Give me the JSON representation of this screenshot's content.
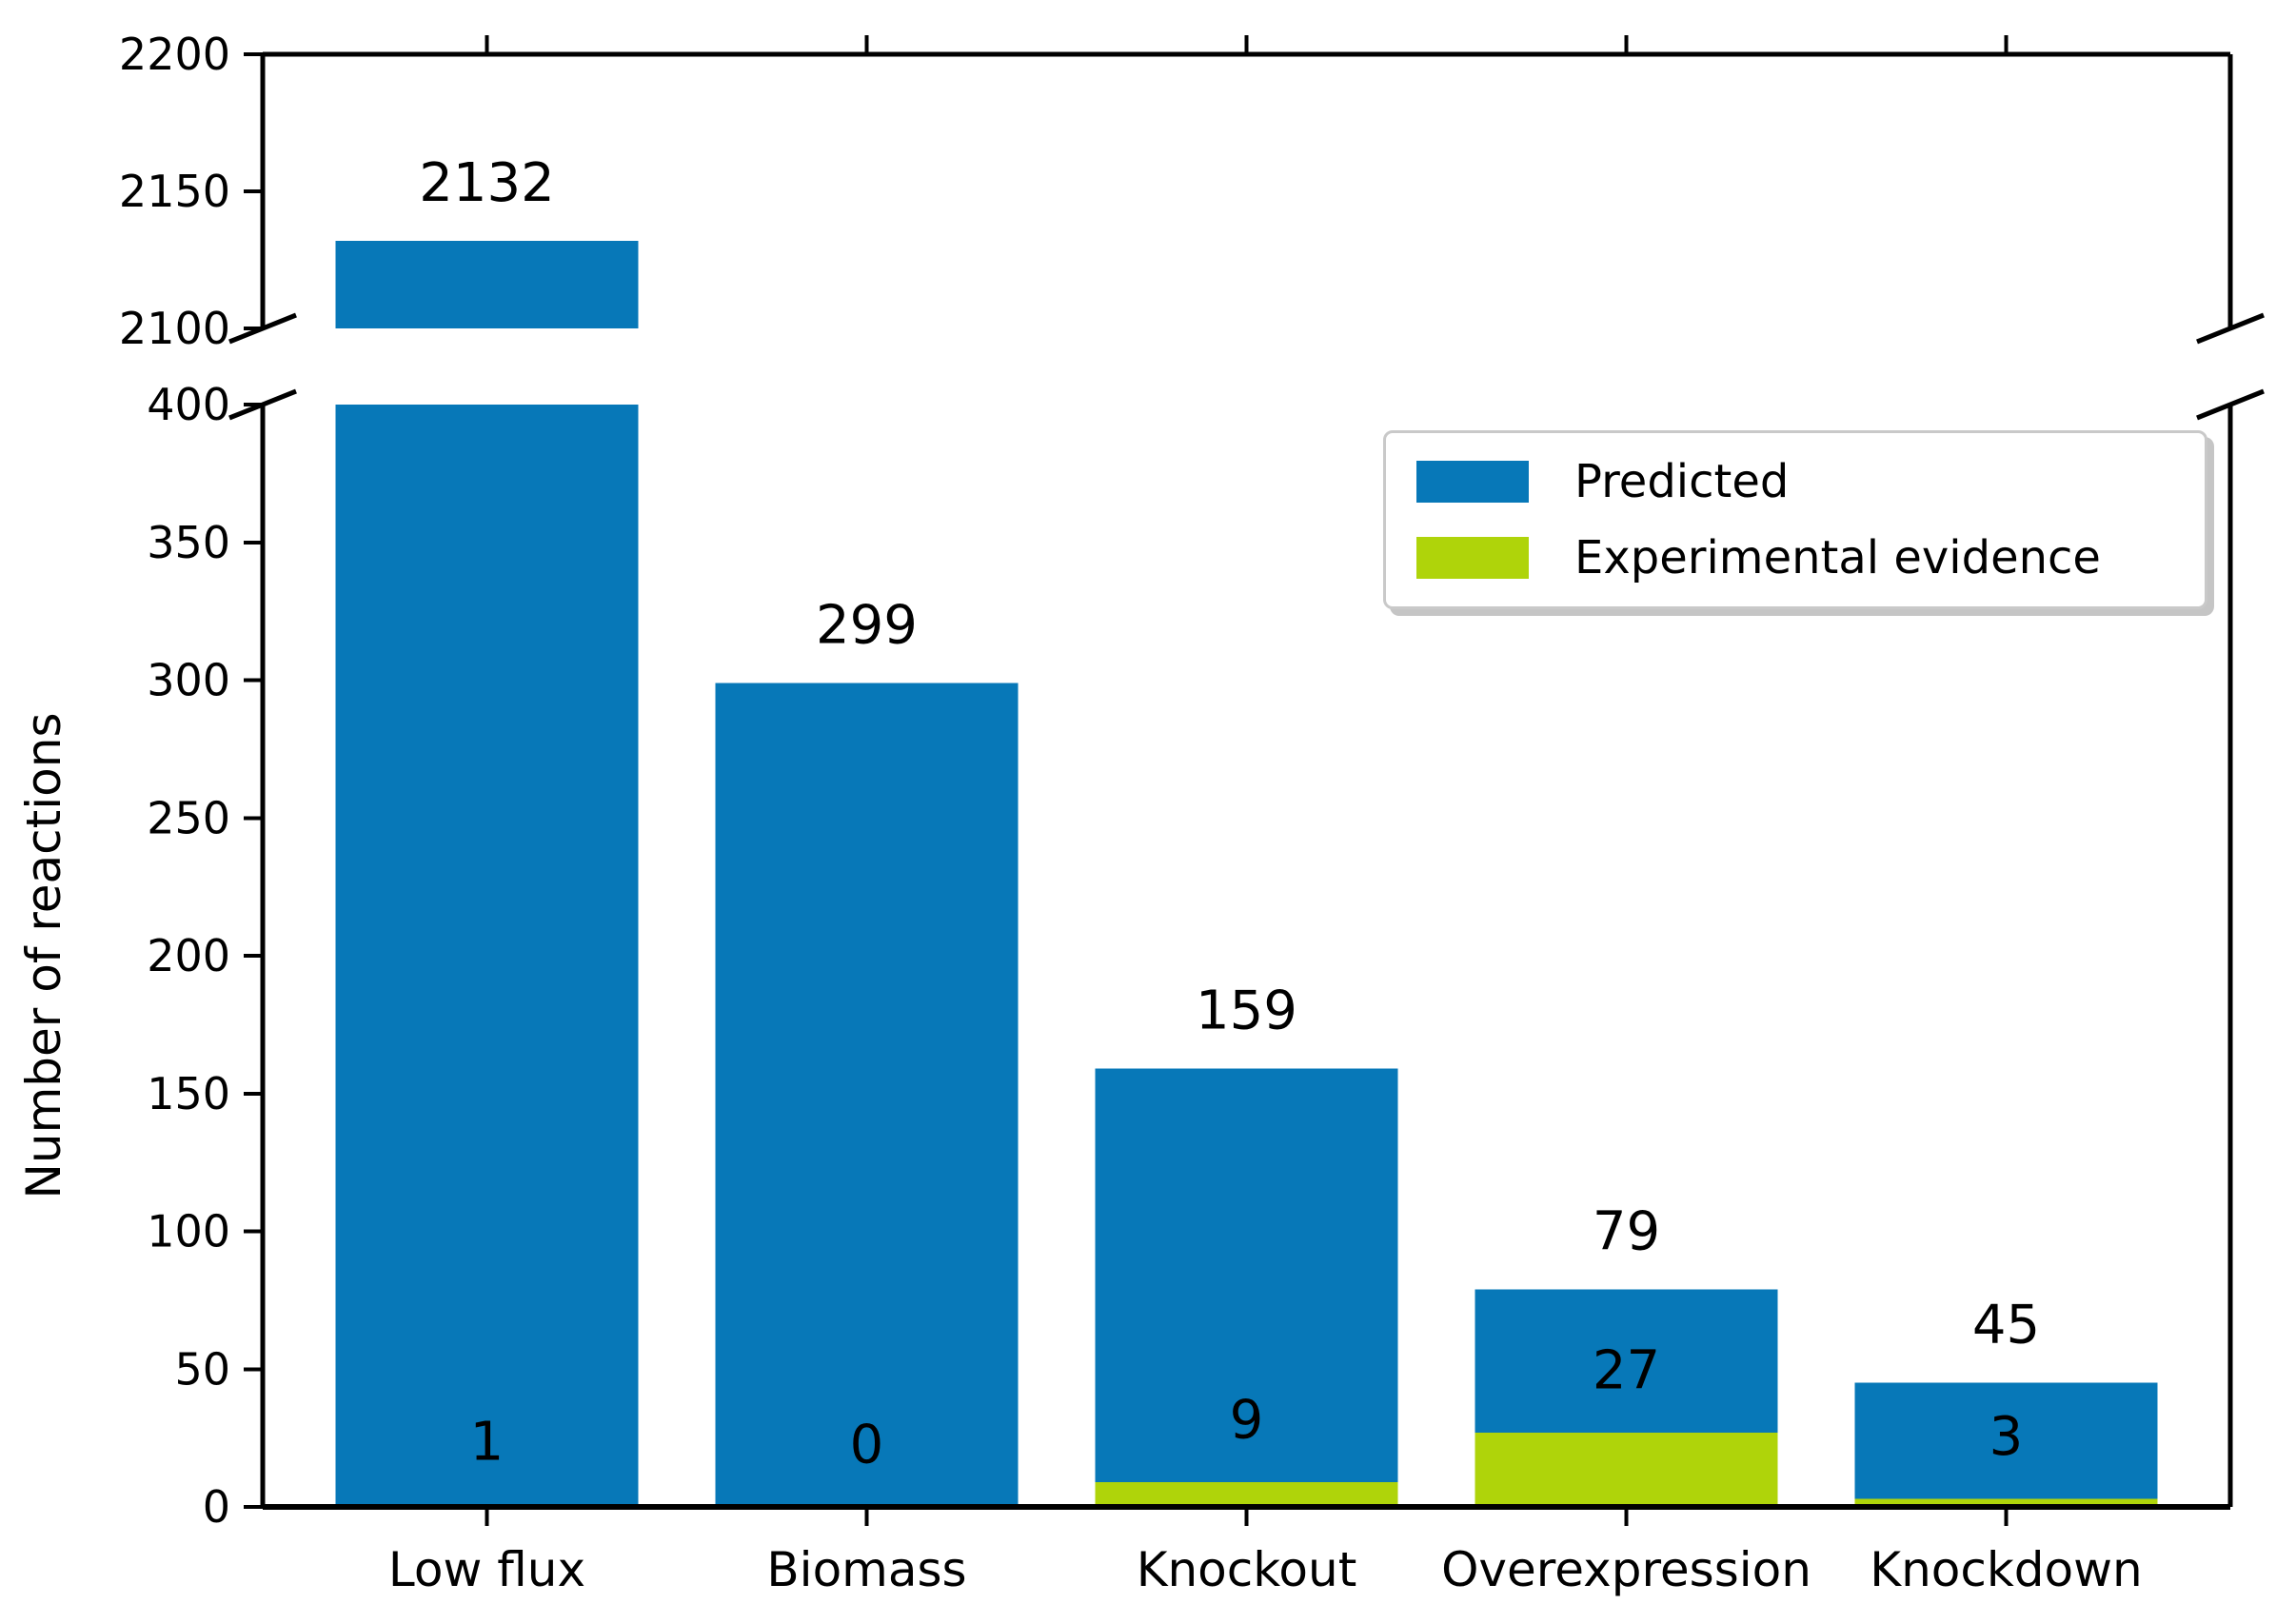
{
  "chart_data": {
    "type": "bar",
    "title": "",
    "xlabel": "",
    "ylabel": "Number of reactions",
    "categories": [
      "Low flux",
      "Biomass",
      "Knockout",
      "Overexpression",
      "Knockdown"
    ],
    "series": [
      {
        "name": "Predicted",
        "color": "#0778b8",
        "values": [
          2132,
          299,
          159,
          79,
          45
        ]
      },
      {
        "name": "Experimental evidence",
        "color": "#afd40a",
        "values": [
          1,
          0,
          9,
          27,
          3
        ]
      }
    ],
    "bar_total_labels": [
      "2132",
      "299",
      "159",
      "79",
      "45"
    ],
    "bar_inner_labels": [
      "1",
      "0",
      "9",
      "27",
      "3"
    ],
    "broken_axis": {
      "lower_panel": {
        "ylim": [
          0,
          400
        ],
        "ticks": [
          0,
          50,
          100,
          150,
          200,
          250,
          300,
          350,
          400
        ]
      },
      "upper_panel": {
        "ylim": [
          2100,
          2200
        ],
        "ticks": [
          2100,
          2150,
          2200
        ]
      }
    },
    "legend": {
      "position": "upper right",
      "entries": [
        "Predicted",
        "Experimental evidence"
      ]
    },
    "grid": false,
    "background": "#ffffff",
    "axis_color": "#000000"
  }
}
